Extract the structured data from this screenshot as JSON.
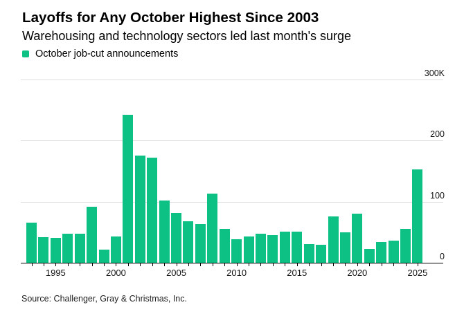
{
  "header": {
    "title": "Layoffs for Any October Highest Since 2003",
    "subtitle": "Warehousing and technology sectors led last month's surge"
  },
  "legend": {
    "label": "October job-cut announcements",
    "swatch_color": "#0cc183"
  },
  "source_note": "Source: Challenger, Gray & Christmas, Inc.",
  "colors": {
    "bar": "#0cc183",
    "gridline": "#dddddd",
    "axis_line": "#000000",
    "title_text": "#000000",
    "axis_label_text": "#111111",
    "source_text": "#1f1f1f",
    "background": "#ffffff"
  },
  "chart_data": {
    "type": "bar",
    "title": "Layoffs for Any October Highest Since 2003",
    "subtitle": "Warehousing and technology sectors led last month's surge",
    "series_name": "October job-cut announcements",
    "unit": "job cuts (thousands)",
    "x": [
      1993,
      1994,
      1995,
      1996,
      1997,
      1998,
      1999,
      2000,
      2001,
      2002,
      2003,
      2004,
      2005,
      2006,
      2007,
      2008,
      2009,
      2010,
      2011,
      2012,
      2013,
      2014,
      2015,
      2016,
      2017,
      2018,
      2019,
      2020,
      2021,
      2022,
      2023,
      2024,
      2025
    ],
    "values": [
      66,
      42,
      41,
      48,
      47,
      91.5,
      22,
      43,
      242.2,
      176.0,
      171.9,
      101.8,
      81.3,
      68,
      63.1,
      112.9,
      55.7,
      38.0,
      42.8,
      47.7,
      45.7,
      51.2,
      50.5,
      30.7,
      29.8,
      75.6,
      50.3,
      80.7,
      22.8,
      33.8,
      36.8,
      55.6,
      153.1
    ],
    "ylim": [
      0,
      300
    ],
    "ytick_values": [
      0,
      100,
      200,
      300
    ],
    "ytick_labels": [
      "0",
      "100",
      "200",
      "300K"
    ],
    "xtick_years": [
      1995,
      2000,
      2005,
      2010,
      2015,
      2020,
      2025
    ],
    "xtick_labels": [
      "1995",
      "2000",
      "2005",
      "2010",
      "2015",
      "2020",
      "2025"
    ],
    "grid": "horizontal",
    "legend_position": "top-left",
    "yaxis_side": "right"
  }
}
